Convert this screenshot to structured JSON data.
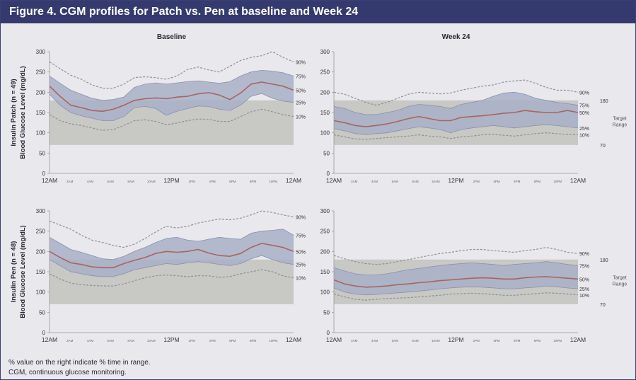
{
  "figure": {
    "title": "Figure 4. CGM profiles for Patch vs. Pen at baseline and Week 24",
    "footnotes": [
      "% value on the right indicate % time in range.",
      "CGM, continuous glucose monitoring."
    ]
  },
  "colors": {
    "header": "#353a6e",
    "band_outer": "#d2d4df",
    "band_inner": "#a9b0c8",
    "median": "#a8655f",
    "dashed": "#909090",
    "target": "#c8c8c4"
  },
  "chart_data": [
    {
      "type": "area",
      "panel": "patch-baseline",
      "title": "Baseline",
      "ylabel_lines": [
        "Insulin Patch (n = 49)",
        "Blood Glucose Level (mg/dL)"
      ],
      "ylim": [
        0,
        300
      ],
      "yticks": [
        0,
        50,
        100,
        150,
        200,
        250,
        300
      ],
      "xticks": [
        "12AM",
        "2AM",
        "4AM",
        "6AM",
        "8AM",
        "10AM",
        "12PM",
        "2PM",
        "4PM",
        "6PM",
        "8PM",
        "10PM",
        "12AM"
      ],
      "target_range": [
        70,
        180
      ],
      "target_label": "",
      "percentile_labels": [
        "90%",
        "75%",
        "50%",
        "25%",
        "10%"
      ],
      "p90": [
        275,
        258,
        242,
        232,
        218,
        210,
        210,
        220,
        236,
        238,
        236,
        232,
        240,
        256,
        262,
        255,
        250,
        264,
        278,
        286,
        290,
        300,
        286,
        275
      ],
      "p75": [
        240,
        222,
        205,
        195,
        185,
        180,
        182,
        188,
        212,
        220,
        223,
        220,
        223,
        226,
        228,
        225,
        222,
        226,
        240,
        250,
        254,
        252,
        248,
        240
      ],
      "p50": [
        215,
        190,
        168,
        162,
        155,
        153,
        158,
        168,
        180,
        184,
        186,
        184,
        188,
        190,
        196,
        199,
        193,
        182,
        198,
        220,
        225,
        220,
        215,
        205
      ],
      "p25": [
        195,
        168,
        150,
        142,
        136,
        130,
        130,
        140,
        162,
        165,
        160,
        143,
        153,
        160,
        166,
        165,
        158,
        155,
        168,
        190,
        197,
        185,
        178,
        175
      ],
      "p10": [
        145,
        130,
        122,
        118,
        112,
        106,
        108,
        118,
        130,
        132,
        128,
        120,
        124,
        130,
        134,
        133,
        128,
        128,
        140,
        152,
        158,
        152,
        145,
        140
      ]
    },
    {
      "type": "area",
      "panel": "patch-week24",
      "title": "Week 24",
      "ylim": [
        0,
        300
      ],
      "yticks": [
        0,
        50,
        100,
        150,
        200,
        250,
        300
      ],
      "xticks": [
        "12AM",
        "2AM",
        "4AM",
        "6AM",
        "8AM",
        "10AM",
        "12PM",
        "2PM",
        "4PM",
        "6PM",
        "8PM",
        "10PM",
        "12AM"
      ],
      "target_range": [
        70,
        180
      ],
      "target_label": "Target Range",
      "percentile_labels": [
        "90%",
        "75%",
        "50%",
        "25%",
        "10%"
      ],
      "p90": [
        200,
        195,
        185,
        175,
        168,
        175,
        185,
        195,
        200,
        198,
        196,
        198,
        205,
        210,
        215,
        218,
        225,
        228,
        230,
        222,
        212,
        205,
        205,
        200
      ],
      "p75": [
        165,
        160,
        150,
        145,
        145,
        150,
        155,
        165,
        170,
        168,
        165,
        160,
        170,
        175,
        180,
        190,
        198,
        200,
        195,
        185,
        180,
        175,
        172,
        168
      ],
      "p50": [
        130,
        125,
        118,
        115,
        118,
        122,
        128,
        135,
        140,
        135,
        130,
        130,
        138,
        140,
        142,
        145,
        148,
        150,
        155,
        152,
        150,
        150,
        155,
        150
      ],
      "p25": [
        110,
        105,
        98,
        95,
        98,
        100,
        105,
        110,
        115,
        112,
        108,
        100,
        108,
        112,
        115,
        118,
        115,
        112,
        115,
        118,
        120,
        118,
        115,
        112
      ],
      "p10": [
        95,
        90,
        85,
        84,
        86,
        88,
        90,
        92,
        95,
        92,
        90,
        86,
        90,
        92,
        95,
        96,
        94,
        92,
        95,
        98,
        100,
        98,
        96,
        95
      ]
    },
    {
      "type": "area",
      "panel": "pen-baseline",
      "ylabel_lines": [
        "Insulin Pen (n = 48)",
        "Blood Glucose Level (mg/dL)"
      ],
      "ylim": [
        0,
        300
      ],
      "yticks": [
        0,
        50,
        100,
        150,
        200,
        250,
        300
      ],
      "xticks": [
        "12AM",
        "2AM",
        "4AM",
        "6AM",
        "8AM",
        "10AM",
        "12PM",
        "2PM",
        "4PM",
        "6PM",
        "8PM",
        "10PM",
        "12AM"
      ],
      "target_range": [
        70,
        180
      ],
      "target_label": "",
      "percentile_labels": [
        "90%",
        "75%",
        "50%",
        "25%",
        "10%"
      ],
      "p90": [
        275,
        265,
        255,
        240,
        228,
        222,
        215,
        210,
        218,
        232,
        248,
        262,
        258,
        262,
        270,
        275,
        280,
        278,
        282,
        290,
        300,
        296,
        290,
        285
      ],
      "p75": [
        235,
        220,
        205,
        198,
        190,
        182,
        180,
        188,
        200,
        210,
        222,
        232,
        235,
        228,
        225,
        230,
        235,
        232,
        230,
        245,
        250,
        252,
        255,
        240
      ],
      "p50": [
        200,
        185,
        172,
        168,
        162,
        160,
        160,
        170,
        178,
        185,
        195,
        200,
        198,
        200,
        205,
        196,
        190,
        188,
        195,
        210,
        220,
        215,
        210,
        200
      ],
      "p25": [
        180,
        165,
        150,
        145,
        140,
        138,
        138,
        145,
        155,
        160,
        165,
        170,
        168,
        172,
        175,
        172,
        168,
        165,
        170,
        182,
        190,
        180,
        172,
        168
      ],
      "p10": [
        145,
        132,
        122,
        118,
        116,
        115,
        115,
        120,
        128,
        135,
        140,
        142,
        140,
        138,
        140,
        140,
        136,
        138,
        145,
        150,
        155,
        150,
        140,
        135
      ]
    },
    {
      "type": "area",
      "panel": "pen-week24",
      "ylim": [
        0,
        300
      ],
      "yticks": [
        0,
        50,
        100,
        150,
        200,
        250,
        300
      ],
      "xticks": [
        "12AM",
        "2AM",
        "4AM",
        "6AM",
        "8AM",
        "10AM",
        "12PM",
        "2PM",
        "4PM",
        "6PM",
        "8PM",
        "10PM",
        "12AM"
      ],
      "target_range": [
        70,
        180
      ],
      "target_label": "Target Range",
      "percentile_labels": [
        "90%",
        "75%",
        "50%",
        "25%",
        "10%"
      ],
      "p90": [
        190,
        182,
        175,
        170,
        168,
        170,
        175,
        180,
        185,
        190,
        195,
        198,
        202,
        205,
        205,
        202,
        200,
        198,
        202,
        205,
        210,
        205,
        198,
        195
      ],
      "p75": [
        160,
        152,
        145,
        142,
        142,
        145,
        150,
        155,
        158,
        162,
        165,
        168,
        170,
        172,
        170,
        168,
        165,
        168,
        170,
        172,
        175,
        172,
        168,
        165
      ],
      "p50": [
        130,
        120,
        115,
        112,
        113,
        115,
        118,
        120,
        123,
        125,
        128,
        130,
        132,
        134,
        135,
        134,
        132,
        132,
        135,
        137,
        138,
        136,
        134,
        132
      ],
      "p25": [
        110,
        100,
        95,
        93,
        94,
        96,
        98,
        100,
        102,
        105,
        108,
        110,
        112,
        113,
        112,
        110,
        108,
        108,
        110,
        112,
        115,
        113,
        110,
        108
      ],
      "p10": [
        95,
        88,
        82,
        80,
        82,
        84,
        85,
        86,
        88,
        90,
        92,
        95,
        96,
        97,
        96,
        94,
        92,
        92,
        94,
        96,
        98,
        97,
        95,
        93
      ]
    }
  ]
}
